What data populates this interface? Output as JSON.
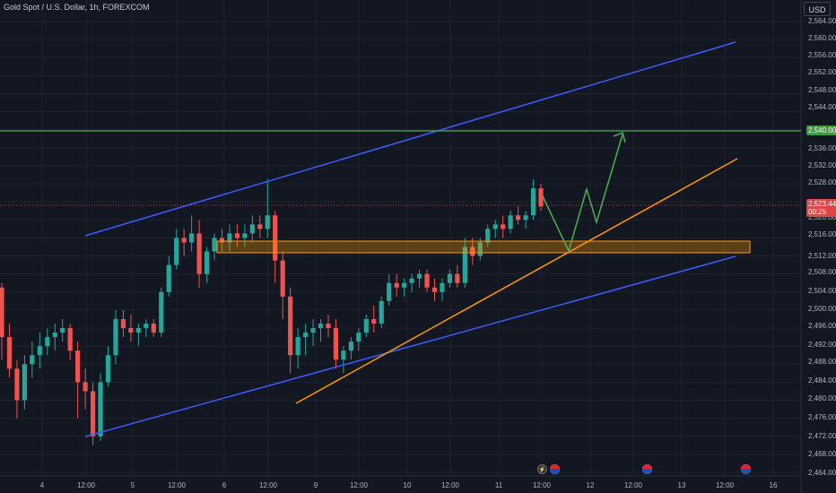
{
  "header": {
    "title": "Gold Spot / U.S. Dollar, 1h, FOREXCOM",
    "currency": "USD"
  },
  "price_axis": {
    "labels": [
      "2,564.00",
      "2,560.00",
      "2,556.00",
      "2,552.00",
      "2,548.00",
      "2,544.00",
      "2,536.00",
      "2,532.00",
      "2,528.00",
      "2,524.00",
      "2,520.00",
      "2,516.00",
      "2,512.00",
      "2,508.00",
      "2,504.00",
      "2,500.00",
      "2,496.00",
      "2,492.00",
      "2,488.00",
      "2,484.00",
      "2,480.00",
      "2,476.00",
      "2,472.00",
      "2,468.00",
      "2,464.00"
    ],
    "level_tag": "2,540.00",
    "price_tag": "2,523.44",
    "countdown": "00:25"
  },
  "time_axis": {
    "labels": [
      "4",
      "12:00",
      "5",
      "12:00",
      "6",
      "12:00",
      "9",
      "12:00",
      "10",
      "12:00",
      "11",
      "12:00",
      "12",
      "12:00",
      "13",
      "12:00",
      "16"
    ]
  },
  "colors": {
    "background": "#131722",
    "up": "#26a69a",
    "down": "#ef5350",
    "channel": "#3d5afe",
    "trend": "#ff9800",
    "level": "#4caf50",
    "projection": "#4caf50"
  },
  "events": [
    "lightning-icon",
    "us-flag-icon",
    "us-flag-icon",
    "us-flag-icon"
  ],
  "chart_data": {
    "type": "candlestick",
    "instrument": "Gold Spot / U.S. Dollar",
    "timeframe": "1h",
    "y_range": [
      2462,
      2566
    ],
    "candles": [
      [
        2505,
        2506,
        2489,
        2494
      ],
      [
        2494,
        2497,
        2485,
        2487
      ],
      [
        2487,
        2489,
        2476,
        2480
      ],
      [
        2480,
        2490,
        2478,
        2488
      ],
      [
        2488,
        2493,
        2485,
        2490
      ],
      [
        2490,
        2495,
        2487,
        2492
      ],
      [
        2492,
        2496,
        2490,
        2494
      ],
      [
        2494,
        2497,
        2491,
        2495
      ],
      [
        2495,
        2498,
        2493,
        2496
      ],
      [
        2496,
        2497,
        2489,
        2491
      ],
      [
        2491,
        2493,
        2476,
        2484
      ],
      [
        2484,
        2487,
        2478,
        2482
      ],
      [
        2482,
        2484,
        2470,
        2472
      ],
      [
        2472,
        2486,
        2471,
        2484
      ],
      [
        2484,
        2492,
        2483,
        2490
      ],
      [
        2490,
        2500,
        2488,
        2498
      ],
      [
        2498,
        2500,
        2494,
        2496
      ],
      [
        2496,
        2499,
        2493,
        2495
      ],
      [
        2495,
        2497,
        2492,
        2496
      ],
      [
        2496,
        2498,
        2494,
        2497
      ],
      [
        2497,
        2498,
        2494,
        2495
      ],
      [
        2495,
        2505,
        2494,
        2504
      ],
      [
        2504,
        2512,
        2503,
        2510
      ],
      [
        2510,
        2518,
        2509,
        2516
      ],
      [
        2516,
        2518,
        2512,
        2515
      ],
      [
        2515,
        2521,
        2513,
        2517
      ],
      [
        2517,
        2520,
        2505,
        2508
      ],
      [
        2508,
        2514,
        2506,
        2513
      ],
      [
        2513,
        2517,
        2511,
        2516
      ],
      [
        2516,
        2518,
        2513,
        2515
      ],
      [
        2515,
        2519,
        2513,
        2517
      ],
      [
        2517,
        2519,
        2514,
        2516
      ],
      [
        2516,
        2519,
        2514,
        2517
      ],
      [
        2517,
        2521,
        2515,
        2519
      ],
      [
        2519,
        2521,
        2516,
        2518
      ],
      [
        2518,
        2529,
        2516,
        2521
      ],
      [
        2521,
        2522,
        2506,
        2511
      ],
      [
        2511,
        2513,
        2498,
        2503
      ],
      [
        2503,
        2505,
        2486,
        2490
      ],
      [
        2490,
        2496,
        2487,
        2494
      ],
      [
        2494,
        2497,
        2490,
        2495
      ],
      [
        2495,
        2498,
        2492,
        2496
      ],
      [
        2496,
        2498,
        2493,
        2497
      ],
      [
        2497,
        2499,
        2494,
        2496
      ],
      [
        2496,
        2498,
        2487,
        2489
      ],
      [
        2489,
        2492,
        2486,
        2491
      ],
      [
        2491,
        2494,
        2489,
        2493
      ],
      [
        2493,
        2496,
        2491,
        2495
      ],
      [
        2495,
        2499,
        2494,
        2498
      ],
      [
        2498,
        2501,
        2495,
        2497
      ],
      [
        2497,
        2503,
        2496,
        2502
      ],
      [
        2502,
        2508,
        2501,
        2506
      ],
      [
        2506,
        2508,
        2503,
        2505
      ],
      [
        2505,
        2507,
        2503,
        2506
      ],
      [
        2506,
        2508,
        2504,
        2507
      ],
      [
        2507,
        2509,
        2505,
        2508
      ],
      [
        2508,
        2509,
        2504,
        2505
      ],
      [
        2505,
        2507,
        2502,
        2504
      ],
      [
        2504,
        2507,
        2502,
        2506
      ],
      [
        2506,
        2509,
        2505,
        2508
      ],
      [
        2508,
        2510,
        2505,
        2506
      ],
      [
        2506,
        2516,
        2505,
        2514
      ],
      [
        2514,
        2516,
        2510,
        2512
      ],
      [
        2512,
        2516,
        2511,
        2515
      ],
      [
        2515,
        2519,
        2514,
        2518
      ],
      [
        2518,
        2520,
        2516,
        2519
      ],
      [
        2519,
        2521,
        2516,
        2518
      ],
      [
        2518,
        2522,
        2517,
        2521
      ],
      [
        2521,
        2523,
        2519,
        2520
      ],
      [
        2520,
        2522,
        2518,
        2521
      ],
      [
        2521,
        2529,
        2520,
        2527
      ],
      [
        2527,
        2528,
        2522,
        2523
      ]
    ],
    "levels": [
      2540
    ],
    "current_price": 2523.44
  }
}
